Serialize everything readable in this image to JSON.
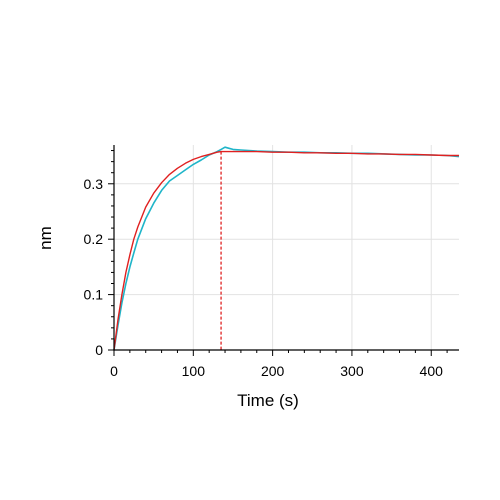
{
  "chart_data": {
    "type": "line",
    "xlabel": "Time (s)",
    "ylabel": "nm",
    "xlim": [
      0,
      435
    ],
    "ylim": [
      0,
      0.37
    ],
    "x_ticks": [
      0,
      100,
      200,
      300,
      400
    ],
    "y_ticks": [
      0,
      0.1,
      0.2,
      0.3
    ],
    "x_tick_labels": [
      "0",
      "100",
      "200",
      "300",
      "400"
    ],
    "y_tick_labels": [
      "0",
      "0.1",
      "0.2",
      "0.3"
    ],
    "grid": true,
    "vertical_marker_x": 135,
    "series": [
      {
        "color": "#1fb5c9",
        "x": [
          0,
          5,
          10,
          15,
          20,
          25,
          30,
          40,
          50,
          60,
          70,
          80,
          90,
          100,
          110,
          120,
          130,
          135,
          140,
          145,
          150,
          160,
          170,
          180,
          200,
          220,
          240,
          260,
          280,
          300,
          320,
          340,
          360,
          380,
          400,
          420,
          435
        ],
        "y": [
          0.0,
          0.045,
          0.085,
          0.12,
          0.15,
          0.175,
          0.2,
          0.237,
          0.265,
          0.288,
          0.305,
          0.315,
          0.325,
          0.335,
          0.343,
          0.352,
          0.358,
          0.362,
          0.366,
          0.364,
          0.362,
          0.361,
          0.36,
          0.359,
          0.358,
          0.357,
          0.357,
          0.356,
          0.356,
          0.355,
          0.355,
          0.354,
          0.353,
          0.352,
          0.352,
          0.351,
          0.349
        ]
      },
      {
        "color": "#e02020",
        "x": [
          0,
          5,
          10,
          15,
          20,
          25,
          30,
          40,
          50,
          60,
          70,
          80,
          90,
          100,
          110,
          120,
          130,
          135,
          140,
          160,
          180,
          200,
          220,
          240,
          260,
          280,
          300,
          320,
          340,
          360,
          380,
          400,
          420,
          435
        ],
        "y": [
          0.0,
          0.055,
          0.1,
          0.14,
          0.172,
          0.2,
          0.222,
          0.258,
          0.283,
          0.302,
          0.317,
          0.328,
          0.337,
          0.344,
          0.349,
          0.353,
          0.357,
          0.358,
          0.358,
          0.358,
          0.358,
          0.357,
          0.357,
          0.356,
          0.356,
          0.355,
          0.355,
          0.354,
          0.354,
          0.353,
          0.353,
          0.352,
          0.351,
          0.351
        ]
      }
    ]
  }
}
